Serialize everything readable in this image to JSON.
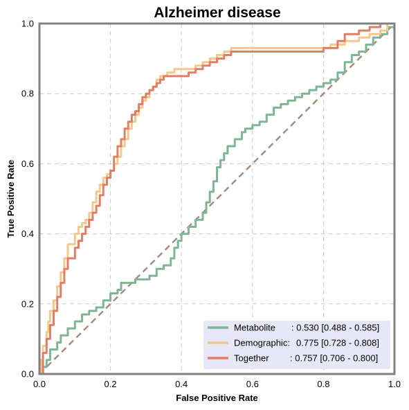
{
  "chart_data": {
    "type": "line",
    "title": "Alzheimer disease",
    "xlabel": "False Positive Rate",
    "ylabel": "True Positive Rate",
    "xlim": [
      0,
      1
    ],
    "ylim": [
      0,
      1
    ],
    "xticks": [
      "0.0",
      "0.2",
      "0.4",
      "0.6",
      "0.8",
      "1.0"
    ],
    "yticks": [
      "0.0",
      "0.2",
      "0.4",
      "0.6",
      "0.8",
      "1.0"
    ],
    "grid": true,
    "legend_position": "bottom-right",
    "reference_line": {
      "x": [
        0,
        1
      ],
      "y": [
        0,
        1
      ],
      "color": "#a98b7e",
      "style": "dashed"
    },
    "series": [
      {
        "name": "Metabolite",
        "label": ": 0.530 [0.488 - 0.585]",
        "color": "#7fb595",
        "x": [
          0,
          0.01,
          0.02,
          0.03,
          0.05,
          0.06,
          0.08,
          0.1,
          0.12,
          0.14,
          0.16,
          0.18,
          0.2,
          0.22,
          0.23,
          0.25,
          0.27,
          0.29,
          0.31,
          0.33,
          0.35,
          0.37,
          0.38,
          0.39,
          0.4,
          0.42,
          0.44,
          0.46,
          0.47,
          0.48,
          0.49,
          0.5,
          0.51,
          0.52,
          0.53,
          0.55,
          0.57,
          0.58,
          0.6,
          0.62,
          0.64,
          0.66,
          0.68,
          0.7,
          0.72,
          0.74,
          0.76,
          0.78,
          0.8,
          0.82,
          0.84,
          0.86,
          0.88,
          0.9,
          0.92,
          0.94,
          0.96,
          0.98,
          1
        ],
        "y": [
          0,
          0.02,
          0.04,
          0.07,
          0.09,
          0.11,
          0.13,
          0.15,
          0.17,
          0.18,
          0.19,
          0.21,
          0.23,
          0.24,
          0.26,
          0.26,
          0.27,
          0.27,
          0.28,
          0.3,
          0.31,
          0.33,
          0.36,
          0.38,
          0.4,
          0.42,
          0.44,
          0.46,
          0.49,
          0.52,
          0.55,
          0.59,
          0.61,
          0.63,
          0.65,
          0.67,
          0.69,
          0.7,
          0.71,
          0.72,
          0.74,
          0.76,
          0.77,
          0.78,
          0.79,
          0.8,
          0.81,
          0.82,
          0.83,
          0.84,
          0.86,
          0.89,
          0.91,
          0.92,
          0.94,
          0.96,
          0.97,
          0.99,
          1
        ]
      },
      {
        "name": "Demographic:",
        "label": "0.775 [0.728 - 0.808]",
        "color": "#f2c98a",
        "x": [
          0,
          0.005,
          0.01,
          0.02,
          0.025,
          0.03,
          0.04,
          0.05,
          0.06,
          0.07,
          0.08,
          0.1,
          0.11,
          0.12,
          0.13,
          0.14,
          0.15,
          0.16,
          0.17,
          0.18,
          0.19,
          0.2,
          0.21,
          0.22,
          0.23,
          0.24,
          0.25,
          0.26,
          0.27,
          0.28,
          0.29,
          0.3,
          0.31,
          0.32,
          0.33,
          0.34,
          0.36,
          0.38,
          0.4,
          0.42,
          0.44,
          0.46,
          0.48,
          0.5,
          0.52,
          0.54,
          0.56,
          0.58,
          0.62,
          0.66,
          0.7,
          0.74,
          0.78,
          0.82,
          0.86,
          0.9,
          0.93,
          0.96,
          0.98,
          1
        ],
        "y": [
          0,
          0.04,
          0.08,
          0.12,
          0.15,
          0.18,
          0.21,
          0.25,
          0.29,
          0.33,
          0.37,
          0.4,
          0.42,
          0.43,
          0.44,
          0.46,
          0.49,
          0.52,
          0.54,
          0.56,
          0.57,
          0.58,
          0.6,
          0.62,
          0.65,
          0.67,
          0.7,
          0.72,
          0.74,
          0.76,
          0.78,
          0.79,
          0.81,
          0.82,
          0.84,
          0.85,
          0.86,
          0.87,
          0.87,
          0.87,
          0.88,
          0.89,
          0.9,
          0.91,
          0.92,
          0.93,
          0.93,
          0.93,
          0.93,
          0.93,
          0.93,
          0.93,
          0.93,
          0.94,
          0.95,
          0.96,
          0.97,
          0.98,
          1,
          1
        ]
      },
      {
        "name": "Together",
        "label": ": 0.757 [0.706 - 0.800]",
        "color": "#e07f65",
        "x": [
          0,
          0.01,
          0.02,
          0.03,
          0.04,
          0.05,
          0.06,
          0.07,
          0.08,
          0.1,
          0.11,
          0.12,
          0.13,
          0.14,
          0.15,
          0.16,
          0.17,
          0.18,
          0.19,
          0.2,
          0.21,
          0.22,
          0.23,
          0.24,
          0.25,
          0.26,
          0.27,
          0.28,
          0.29,
          0.3,
          0.31,
          0.32,
          0.33,
          0.34,
          0.35,
          0.36,
          0.38,
          0.4,
          0.42,
          0.44,
          0.46,
          0.48,
          0.5,
          0.52,
          0.54,
          0.56,
          0.6,
          0.66,
          0.7,
          0.74,
          0.8,
          0.84,
          0.86,
          0.9,
          0.93,
          0.96,
          1
        ],
        "y": [
          0,
          0.06,
          0.1,
          0.14,
          0.18,
          0.22,
          0.26,
          0.3,
          0.33,
          0.36,
          0.38,
          0.4,
          0.42,
          0.44,
          0.46,
          0.48,
          0.51,
          0.54,
          0.56,
          0.58,
          0.62,
          0.65,
          0.67,
          0.7,
          0.72,
          0.74,
          0.75,
          0.77,
          0.79,
          0.8,
          0.81,
          0.82,
          0.83,
          0.84,
          0.85,
          0.85,
          0.85,
          0.85,
          0.86,
          0.87,
          0.88,
          0.89,
          0.9,
          0.91,
          0.92,
          0.92,
          0.92,
          0.92,
          0.92,
          0.92,
          0.93,
          0.95,
          0.97,
          0.98,
          0.99,
          1,
          1
        ]
      }
    ]
  }
}
